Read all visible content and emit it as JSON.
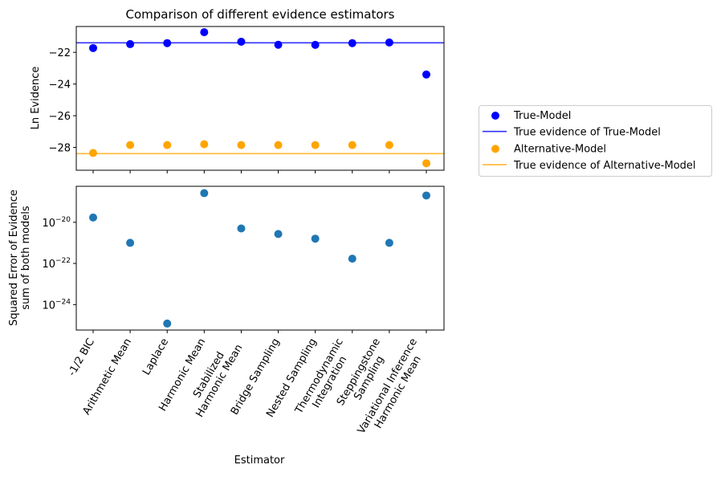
{
  "figure": {
    "xlabel": "Estimator"
  },
  "chart_data": [
    {
      "type": "scatter",
      "title": "Comparison of different evidence estimators",
      "xlabel": "",
      "ylabel": "Ln Evidence",
      "categories": [
        "-1/2 BIC",
        "Arithmetic Mean",
        "Laplace",
        "Harmonic Mean",
        "Stabilized\nHarmonic Mean",
        "Bridge Sampling",
        "Nested Sampling",
        "Thermodynamic\nIntegration",
        "Steppingstone\nSampling",
        "Variational Inference\nHarmonic Mean"
      ],
      "ylim": [
        -29.44,
        -20.37
      ],
      "yticks": [
        -28,
        -26,
        -24,
        -22
      ],
      "ytick_labels": [
        "−28",
        "−26",
        "−24",
        "−22"
      ],
      "grid": false,
      "legend_placement": "outside-right",
      "series": [
        {
          "name": "True-Model",
          "kind": "scatter",
          "color": "#0000ff",
          "values": [
            -21.73,
            -21.48,
            -21.42,
            -20.73,
            -21.33,
            -21.52,
            -21.53,
            -21.42,
            -21.38,
            -23.4
          ]
        },
        {
          "name": "True evidence of True-Model",
          "kind": "hline",
          "color": "#3333ff",
          "value": -21.4
        },
        {
          "name": "Alternative-Model",
          "kind": "scatter",
          "color": "#ffa500",
          "values": [
            -28.35,
            -27.85,
            -27.85,
            -27.8,
            -27.85,
            -27.85,
            -27.85,
            -27.85,
            -27.85,
            -29.0
          ]
        },
        {
          "name": "True evidence of Alternative-Model",
          "kind": "hline",
          "color": "#ffb733",
          "value": -28.39
        }
      ]
    },
    {
      "type": "scatter",
      "title": "",
      "xlabel": "Estimator",
      "ylabel": "Squared Error of Evidence\nsum of both models",
      "yscale": "log",
      "ylim": [
        5.8e-26,
        5.6e-19
      ],
      "yticks": [
        1e-24,
        1e-22,
        1e-20
      ],
      "ytick_labels": [
        {
          "base": "10",
          "exp": "−24"
        },
        {
          "base": "10",
          "exp": "−22"
        },
        {
          "base": "10",
          "exp": "−20"
        }
      ],
      "grid": false,
      "series": [
        {
          "color": "#1f77b4",
          "values": [
            1.7e-20,
            1e-21,
            1.2e-25,
            2.6e-19,
            5e-21,
            2.7e-21,
            1.6e-21,
            1.7e-22,
            1e-21,
            2e-19
          ]
        }
      ]
    }
  ]
}
